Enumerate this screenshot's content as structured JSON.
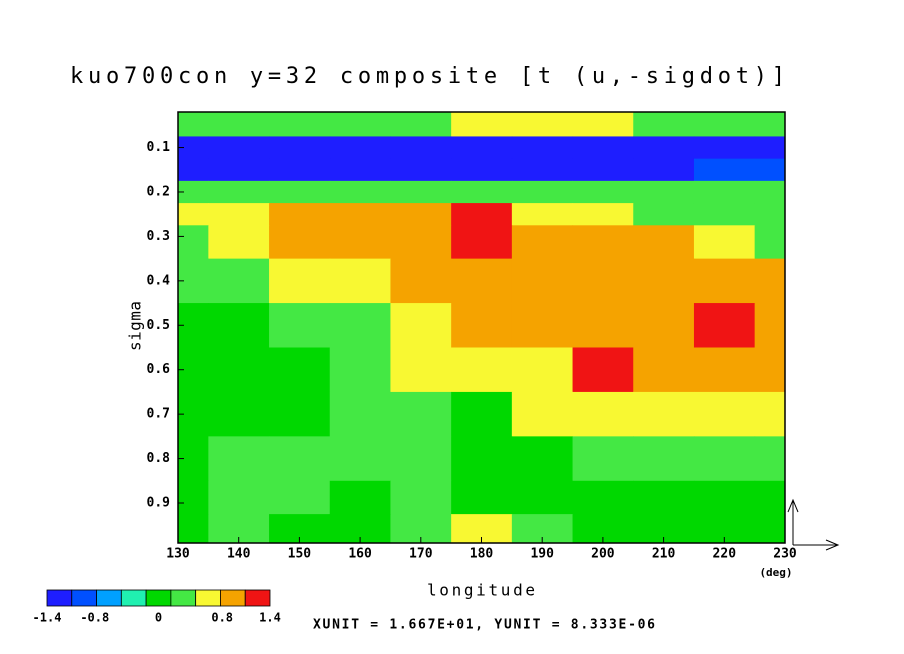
{
  "chart_data": {
    "type": "contour",
    "title": "kuo700con y=32 composite [t (u,-sigdot)]",
    "x_label": "longitude",
    "y_label": "sigma",
    "x_unit": "(deg)",
    "footer": "XUNIT = 1.667E+01, YUNIT = 8.333E-06",
    "xlim": [
      130,
      230
    ],
    "xticks": [
      130,
      140,
      150,
      160,
      170,
      180,
      190,
      200,
      210,
      220,
      230
    ],
    "ylim": [
      0.02,
      0.99
    ],
    "invert_y": true,
    "yticks": [
      0.1,
      0.2,
      0.3,
      0.4,
      0.5,
      0.6,
      0.7,
      0.8,
      0.9
    ],
    "x": [
      130,
      140,
      150,
      160,
      170,
      180,
      190,
      200,
      210,
      220,
      230
    ],
    "y": [
      0.05,
      0.1,
      0.15,
      0.2,
      0.25,
      0.3,
      0.4,
      0.5,
      0.6,
      0.7,
      0.8,
      0.9,
      0.95
    ],
    "z": [
      [
        0.3,
        0.3,
        0.3,
        0.3,
        0.3,
        0.5,
        0.5,
        0.5,
        0.3,
        0.3,
        0.3
      ],
      [
        -1.3,
        -1.3,
        -1.3,
        -1.3,
        -1.3,
        -1.3,
        -1.3,
        -1.3,
        -1.3,
        -1.3,
        -1.3
      ],
      [
        -1.1,
        -1.1,
        -1.1,
        -1.1,
        -1.1,
        -1.1,
        -1.1,
        -1.1,
        -1.1,
        -0.9,
        -0.9
      ],
      [
        0.2,
        0.2,
        0.2,
        0.2,
        0.2,
        0.2,
        0.2,
        0.2,
        0.2,
        0.2,
        0.2
      ],
      [
        0.6,
        0.6,
        0.9,
        0.9,
        0.9,
        1.3,
        0.6,
        0.6,
        0.3,
        0.3,
        0.3
      ],
      [
        0.3,
        0.5,
        0.9,
        0.9,
        0.9,
        1.3,
        0.9,
        0.9,
        0.9,
        0.6,
        0.3
      ],
      [
        0.3,
        0.3,
        0.5,
        0.6,
        0.9,
        0.9,
        0.9,
        0.9,
        0.9,
        0.9,
        0.9
      ],
      [
        -0.1,
        0.1,
        0.3,
        0.3,
        0.6,
        0.9,
        0.9,
        0.9,
        0.9,
        1.3,
        0.9
      ],
      [
        -0.1,
        -0.1,
        0.1,
        0.2,
        0.5,
        0.6,
        0.6,
        1.3,
        0.9,
        0.9,
        0.9
      ],
      [
        -0.1,
        0.1,
        0.1,
        0.2,
        0.3,
        -0.1,
        0.5,
        0.6,
        0.6,
        0.5,
        0.6
      ],
      [
        -0.1,
        0.2,
        0.2,
        0.2,
        0.2,
        -0.1,
        0.1,
        0.3,
        0.3,
        0.3,
        0.3
      ],
      [
        0.1,
        0.2,
        0.2,
        0.1,
        0.3,
        0.1,
        -0.1,
        -0.1,
        -0.1,
        -0.1,
        -0.1
      ],
      [
        0.1,
        0.2,
        0.1,
        0.1,
        0.3,
        0.6,
        0.2,
        -0.1,
        -0.1,
        -0.1,
        -0.1
      ]
    ],
    "colorbar": {
      "clim": [
        -1.4,
        1.4
      ],
      "colors": [
        "#1e1eff",
        "#0050ff",
        "#00a0ff",
        "#20f0b0",
        "#00d800",
        "#44e844",
        "#f8f832",
        "#f5a300",
        "#f01414"
      ],
      "ticks": [
        -1.4,
        -0.8,
        0,
        0.8,
        1.4
      ]
    }
  }
}
